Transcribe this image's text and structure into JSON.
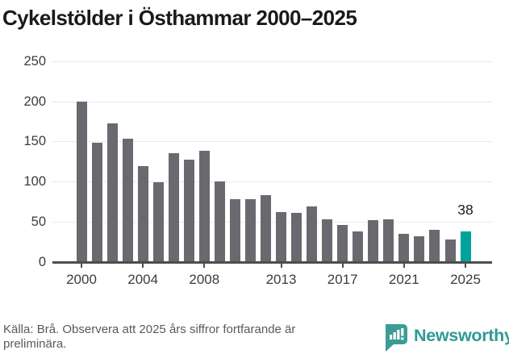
{
  "title": "Cykelstölder i Östhammar 2000–2025",
  "chart_data": {
    "type": "bar",
    "title": "Cykelstölder i Östhammar 2000–2025",
    "categories": [
      2000,
      2001,
      2002,
      2003,
      2004,
      2005,
      2006,
      2007,
      2008,
      2009,
      2010,
      2011,
      2012,
      2013,
      2014,
      2015,
      2016,
      2017,
      2018,
      2019,
      2020,
      2021,
      2022,
      2023,
      2024,
      2025
    ],
    "values": [
      200,
      148,
      172,
      153,
      119,
      99,
      135,
      127,
      138,
      100,
      78,
      78,
      83,
      62,
      61,
      69,
      53,
      46,
      38,
      52,
      53,
      35,
      32,
      40,
      28,
      38
    ],
    "xlabel": "",
    "ylabel": "",
    "ylim": [
      0,
      250
    ],
    "y_ticks": [
      0,
      50,
      100,
      150,
      200,
      250
    ],
    "x_tick_labels": [
      "2000",
      "2004",
      "2008",
      "2013",
      "2017",
      "2021",
      "2025"
    ],
    "grid": true,
    "legend_position": "none",
    "bar_color": "#6a6970",
    "highlight_year": 2025,
    "highlight_color": "#00a29b",
    "annotation": {
      "year": 2025,
      "label": "38"
    }
  },
  "footer": {
    "source_text": "Källa: Brå. Observera att 2025 års siffror fortfarande är preliminära.",
    "logo_text": "Newsworthy",
    "logo_color": "#3b9c96",
    "logo_text_color": "#2f9a94"
  }
}
